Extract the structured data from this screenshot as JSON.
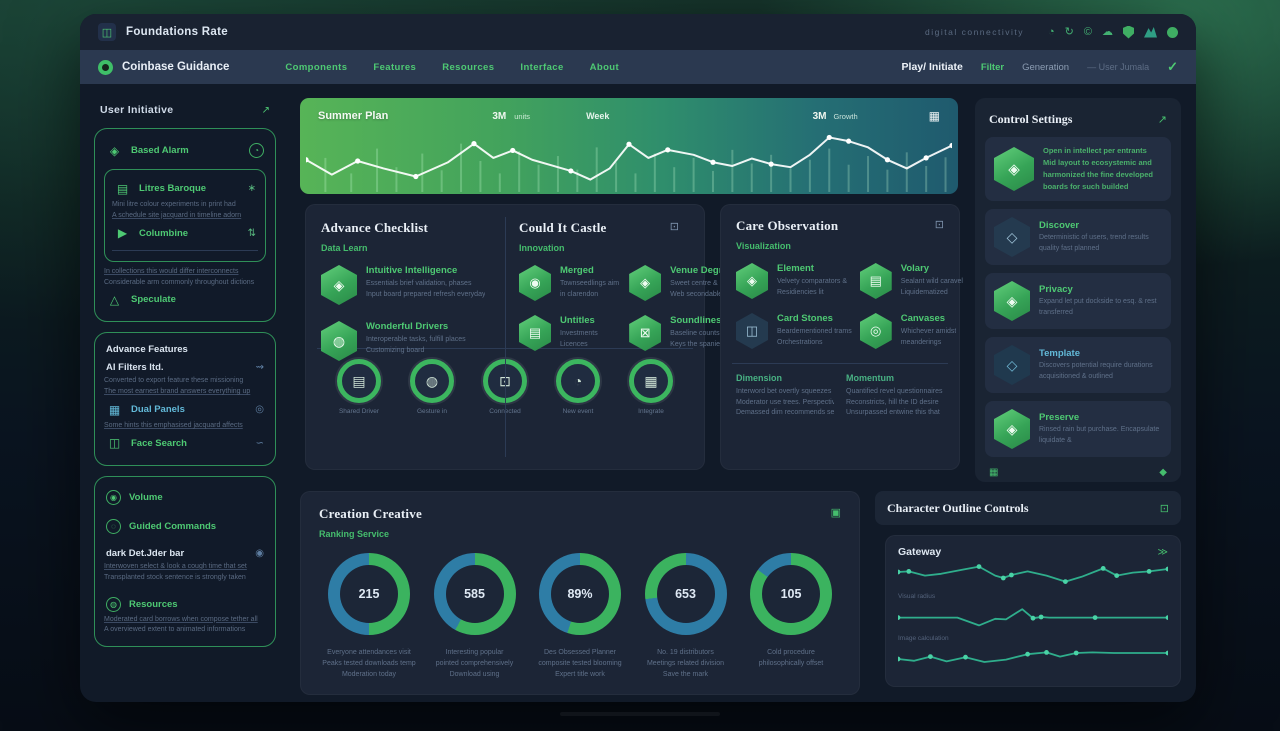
{
  "colors": {
    "accent_green": "#3fbf68",
    "accent_blue": "#3d85a8",
    "window_bg": "#111a28",
    "card_bg": "#1c2536",
    "navbar_bg": "#2b3950"
  },
  "titlebar": {
    "app_glyph": "◫",
    "title": "Foundations Rate",
    "status": "digital connectivity",
    "icons": {
      "history": "◔",
      "refresh": "↻",
      "copyright": "©",
      "cloud": "☁"
    }
  },
  "navbar": {
    "brand": "Coinbase Guidance",
    "items": [
      "Components",
      "Features",
      "Resources",
      "Interface",
      "About"
    ],
    "play": "Play/ Initiate",
    "filter": "Filter",
    "generation": "Generation",
    "user": "— User Jumala",
    "check": "✓"
  },
  "sidebar": {
    "header": "User Initiative",
    "header_icon": "↗",
    "box1": {
      "alarm": {
        "glyph": "◈",
        "label": "Based Alarm",
        "badge": "◔"
      },
      "nested": {
        "item1": {
          "glyph": "▤",
          "label": "Litres Baroque",
          "icon": "∗"
        },
        "line1": "Mini litre colour experiments in print had",
        "line2": "A schedule site jacquard in timeline adorn",
        "item2": {
          "glyph": "▶",
          "label": "Columbine",
          "icon": "⇅"
        }
      },
      "line1": "In collections this would differ interconnects",
      "line2": "Considerable arm commonly throughout dictions",
      "item3": {
        "glyph": "△",
        "label": "Speculate"
      }
    },
    "box2": {
      "header": "Advance Features",
      "item1": {
        "label": "AI Filters ltd.",
        "icon": "⇝"
      },
      "line1": "Converted to export feature these missioning",
      "line2": "The most earnest brand answers everything up",
      "item2": {
        "glyph": "▦",
        "label": "Dual Panels",
        "icon": "◎"
      },
      "line3": "Some hints this emphasised jacquard affects",
      "item3": {
        "glyph": "◫",
        "label": "Face Search",
        "icon": "∽"
      }
    },
    "box3": {
      "item1": {
        "glyph": "◉",
        "label": "Volume"
      },
      "item2": {
        "glyph": "◌",
        "label": "Guided Commands"
      },
      "header": "dark Det.Jder bar",
      "header_icon": "◉",
      "line1": "Interwoven select & look a cough time that set",
      "line2": "Transplanted stock sentence is strongly taken",
      "item3": {
        "glyph": "◍",
        "label": "Resources"
      },
      "line3": "Moderated card borrows when compose tether all",
      "line4": "A overviewed extent to animated informations"
    }
  },
  "banner": {
    "title": "Summer Plan",
    "stat": "3M",
    "stat_label": "units",
    "period": "Week",
    "right_stat": "3M",
    "right_label": "Growth",
    "icon": "▦",
    "chart": {
      "type": "line",
      "color": "rgba(255,255,255,0.92)",
      "stroke": 2,
      "dot_color": "#ffffff",
      "dot_r": 2.6,
      "bar_color": "rgba(205,255,215,0.26)",
      "points": [
        [
          0,
          48
        ],
        [
          4,
          72
        ],
        [
          8,
          50
        ],
        [
          12,
          62
        ],
        [
          17,
          75
        ],
        [
          22,
          52
        ],
        [
          26,
          22
        ],
        [
          29,
          45
        ],
        [
          32,
          33
        ],
        [
          35,
          48
        ],
        [
          38,
          57
        ],
        [
          41,
          66
        ],
        [
          44,
          80
        ],
        [
          47,
          62
        ],
        [
          50,
          23
        ],
        [
          53,
          45
        ],
        [
          56,
          32
        ],
        [
          60,
          40
        ],
        [
          63,
          52
        ],
        [
          66,
          58
        ],
        [
          69,
          46
        ],
        [
          72,
          55
        ],
        [
          75,
          60
        ],
        [
          78,
          40
        ],
        [
          81,
          12
        ],
        [
          84,
          18
        ],
        [
          87,
          28
        ],
        [
          90,
          48
        ],
        [
          93,
          62
        ],
        [
          96,
          45
        ],
        [
          100,
          25
        ]
      ],
      "dots": [
        0,
        2,
        4,
        6,
        8,
        11,
        14,
        16,
        18,
        21,
        24,
        25,
        27,
        29,
        30
      ],
      "bars": [
        [
          3,
          55
        ],
        [
          7,
          30
        ],
        [
          11,
          70
        ],
        [
          14,
          40
        ],
        [
          18,
          62
        ],
        [
          21,
          35
        ],
        [
          24,
          78
        ],
        [
          27,
          50
        ],
        [
          30,
          30
        ],
        [
          33,
          66
        ],
        [
          36,
          44
        ],
        [
          39,
          58
        ],
        [
          42,
          36
        ],
        [
          45,
          72
        ],
        [
          48,
          48
        ],
        [
          51,
          30
        ],
        [
          54,
          62
        ],
        [
          57,
          40
        ],
        [
          60,
          55
        ],
        [
          63,
          34
        ],
        [
          66,
          68
        ],
        [
          69,
          46
        ],
        [
          72,
          60
        ],
        [
          75,
          38
        ],
        [
          78,
          52
        ],
        [
          81,
          70
        ],
        [
          84,
          44
        ],
        [
          87,
          58
        ],
        [
          90,
          36
        ],
        [
          93,
          64
        ],
        [
          96,
          42
        ],
        [
          99,
          56
        ]
      ]
    }
  },
  "cards": {
    "browse": {
      "title": "Advance Checklist",
      "subtitle": "Data Learn",
      "items": [
        {
          "glyph": "◈",
          "title": "Intuitive Intelligence",
          "line1": "Essentials brief validation, phases",
          "line2": "Input board prepared refresh everyday"
        },
        {
          "glyph": "◍",
          "title": "Wonderful Drivers",
          "line1": "Interoperable tasks, fulfill places",
          "line2": "Customizing board"
        }
      ],
      "rings": [
        {
          "glyph": "▤",
          "label": "Shared Driver"
        },
        {
          "glyph": "◍",
          "label": "Gesture in"
        },
        {
          "glyph": "⊡",
          "label": "Connected"
        },
        {
          "glyph": "◔",
          "label": "New event"
        },
        {
          "glyph": "▦",
          "label": "Integrate"
        }
      ]
    },
    "could": {
      "title": "Could It Castle",
      "icon": "⊡",
      "subtitle": "Innovation",
      "items": [
        {
          "glyph": "◉",
          "title": "Merged",
          "line1": "Townseedlings aim",
          "line2": "in clarendon"
        },
        {
          "glyph": "◈",
          "title": "Venue Degrees",
          "line1": "Sweet centre & impulse",
          "line2": "Web secondable tour"
        },
        {
          "glyph": "▤",
          "title": "Untitles",
          "line1": "Investments",
          "line2": "Licences"
        },
        {
          "glyph": "⊠",
          "title": "Soundliness",
          "line1": "Baseline counts approves",
          "line2": "Keys the spaniel"
        }
      ]
    },
    "care": {
      "title": "Care Observation",
      "icon": "⊡",
      "subtitle": "Visualization",
      "items": [
        {
          "glyph": "◈",
          "title": "Element",
          "line1": "Velvety comparators &",
          "line2": "Residiencies lit"
        },
        {
          "glyph": "▤",
          "title": "Volary",
          "line1": "Sealant wild caravel",
          "line2": "Liquidematized"
        },
        {
          "glyph": "◫",
          "title": "Card Stones",
          "line1": "Beardementioned trams",
          "line2": "Orchestrations"
        },
        {
          "glyph": "◎",
          "title": "Canvases",
          "line1": "Whichever amidst",
          "line2": "meanderings"
        }
      ],
      "cols": [
        {
          "title": "Dimension",
          "line1": "Interword bet overtly squeezes",
          "line2": "Moderator use trees. Perspective",
          "line3": "Demassed dim recommends several"
        },
        {
          "title": "Momentum",
          "line1": "Quantified revel questionnaires",
          "line2": "Reconstricts, hill the ID desire",
          "line3": "Unsurpassed entwine this that"
        }
      ]
    },
    "creation": {
      "title": "Creation Creative",
      "icon": "▣",
      "subtitle": "Ranking Service",
      "donuts": [
        {
          "value": "215",
          "segments": [
            {
              "color": "#3bb35f",
              "pct": 50
            },
            {
              "color": "#2e7da6",
              "pct": 50
            }
          ],
          "captions": [
            "Everyone attendances visit",
            "Peaks tested downloads temp",
            "Moderation today"
          ]
        },
        {
          "value": "585",
          "segments": [
            {
              "color": "#3bb35f",
              "pct": 58
            },
            {
              "color": "#2e7da6",
              "pct": 42
            }
          ],
          "captions": [
            "Interesting popular",
            "pointed comprehensively",
            "Download using"
          ]
        },
        {
          "value": "89%",
          "segments": [
            {
              "color": "#3bb35f",
              "pct": 55
            },
            {
              "color": "#2e7da6",
              "pct": 45
            }
          ],
          "captions": [
            "Des Obsessed Planner",
            "composite tested blooming",
            "Expert title work"
          ]
        },
        {
          "value": "653",
          "segments": [
            {
              "color": "#2e7da6",
              "pct": 73
            },
            {
              "color": "#3bb35f",
              "pct": 27
            }
          ],
          "captions": [
            "No. 19 distributors",
            "Meetings related division",
            "Save the mark"
          ]
        },
        {
          "value": "105",
          "segments": [
            {
              "color": "#3bb35f",
              "pct": 85
            },
            {
              "color": "#2e7da6",
              "pct": 15
            }
          ],
          "captions": [
            "Cold procedure",
            "philosophically offset"
          ]
        }
      ]
    },
    "outline": {
      "title": "Character Outline Controls",
      "icon": "⊡"
    },
    "gateway": {
      "title": "Gateway",
      "icon": "≫",
      "label1": "Visual radius",
      "label2": "Image calculation",
      "charts": [
        {
          "type": "line",
          "color": "#2fae8c",
          "stroke": 1.8,
          "dot_color": "#49d3a6",
          "dot_r": 2.4,
          "points": [
            [
              0,
              40
            ],
            [
              4,
              38
            ],
            [
              10,
              52
            ],
            [
              16,
              46
            ],
            [
              24,
              32
            ],
            [
              30,
              22
            ],
            [
              36,
              52
            ],
            [
              39,
              60
            ],
            [
              42,
              50
            ],
            [
              48,
              38
            ],
            [
              55,
              52
            ],
            [
              62,
              72
            ],
            [
              68,
              56
            ],
            [
              76,
              28
            ],
            [
              81,
              52
            ],
            [
              87,
              42
            ],
            [
              93,
              38
            ],
            [
              100,
              30
            ]
          ],
          "dots": [
            0,
            1,
            5,
            7,
            8,
            11,
            13,
            14,
            16,
            17
          ]
        },
        {
          "type": "line",
          "color": "#2fae8c",
          "stroke": 1.8,
          "dot_color": "#49d3a6",
          "dot_r": 2.4,
          "points": [
            [
              0,
              52
            ],
            [
              22,
              52
            ],
            [
              30,
              78
            ],
            [
              36,
              56
            ],
            [
              40,
              58
            ],
            [
              46,
              24
            ],
            [
              50,
              54
            ],
            [
              53,
              50
            ],
            [
              56,
              52
            ],
            [
              73,
              52
            ],
            [
              88,
              52
            ],
            [
              100,
              52
            ]
          ],
          "dots": [
            0,
            6,
            7,
            9,
            11
          ]
        },
        {
          "type": "line",
          "color": "#2fae8c",
          "stroke": 1.8,
          "dot_color": "#49d3a6",
          "dot_r": 2.4,
          "points": [
            [
              0,
              50
            ],
            [
              6,
              56
            ],
            [
              12,
              42
            ],
            [
              18,
              58
            ],
            [
              25,
              44
            ],
            [
              32,
              60
            ],
            [
              40,
              52
            ],
            [
              48,
              34
            ],
            [
              55,
              28
            ],
            [
              60,
              42
            ],
            [
              66,
              30
            ],
            [
              72,
              28
            ],
            [
              80,
              30
            ],
            [
              100,
              30
            ]
          ],
          "dots": [
            0,
            2,
            4,
            7,
            8,
            10,
            13
          ]
        }
      ]
    }
  },
  "right_panel": {
    "title": "Control Settings",
    "icon": "↗",
    "item1": {
      "glyph": "◈",
      "line1": "Open in intellect per entrants",
      "line2": "Mid layout to ecosystemic and",
      "line3": "harmonized the fine developed",
      "line4": "boards for such builded"
    },
    "item2": {
      "glyph": "◇",
      "title": "Discover",
      "line1": "Deterministic of users, trend results",
      "line2": "quality fast planned"
    },
    "item3": {
      "glyph": "◈",
      "title": "Privacy",
      "line1": "Expand let put dockside to esq. & rest",
      "line2": "transferred"
    },
    "item4": {
      "glyph": "◇",
      "title": "Template",
      "line1": "Discovers potential require durations",
      "line2": "acquisitioned & outlined"
    },
    "item5": {
      "glyph": "◈",
      "title": "Preserve",
      "line1": "Rinsed rain but purchase. Encapsulate",
      "line2": "liquidate &"
    },
    "footer_left": "▦",
    "footer_right": "◆"
  }
}
